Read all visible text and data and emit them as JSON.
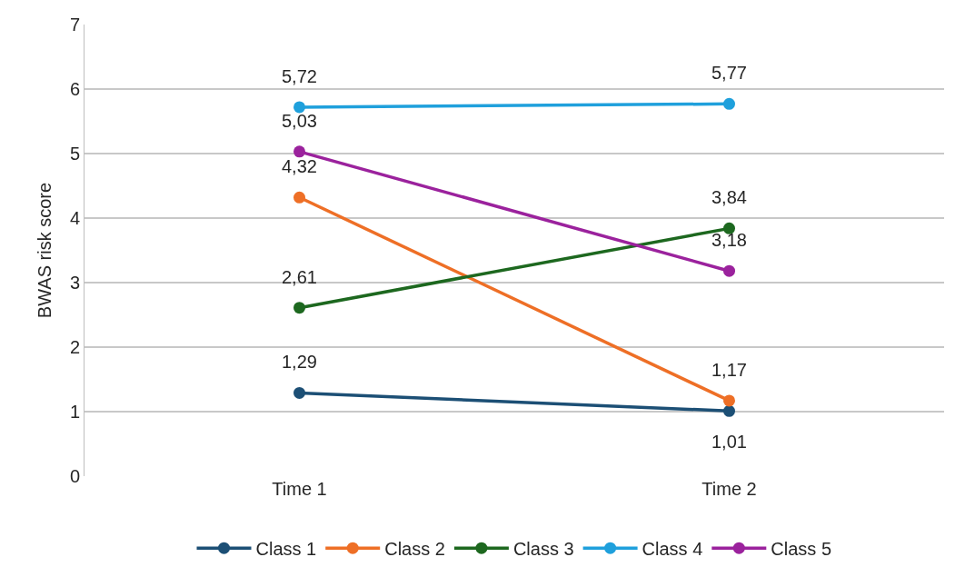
{
  "chart_data": {
    "type": "line",
    "ylabel": "BWAS risk score",
    "categories": [
      "Time 1",
      "Time 2"
    ],
    "series": [
      {
        "name": "Class 1",
        "color": "#1c4f75",
        "values": [
          1.29,
          1.01
        ],
        "value_labels": [
          "1,29",
          "1,01"
        ]
      },
      {
        "name": "Class 2",
        "color": "#ee6f26",
        "values": [
          4.32,
          1.17
        ],
        "value_labels": [
          "4,32",
          "1,17"
        ]
      },
      {
        "name": "Class 3",
        "color": "#1d681f",
        "values": [
          2.61,
          3.84
        ],
        "value_labels": [
          "2,61",
          "3,84"
        ]
      },
      {
        "name": "Class 4",
        "color": "#1fa0dc",
        "values": [
          5.72,
          5.77
        ],
        "value_labels": [
          "5,72",
          "5,77"
        ]
      },
      {
        "name": "Class 5",
        "color": "#9b229d",
        "values": [
          5.03,
          3.18
        ],
        "value_labels": [
          "5,03",
          "3,18"
        ]
      }
    ],
    "ylim": [
      0,
      7
    ],
    "yticks": [
      0,
      1,
      2,
      3,
      4,
      5,
      6,
      7
    ],
    "grid": "y",
    "legend": "bottom",
    "marker": "circle",
    "line_style": "solid"
  }
}
